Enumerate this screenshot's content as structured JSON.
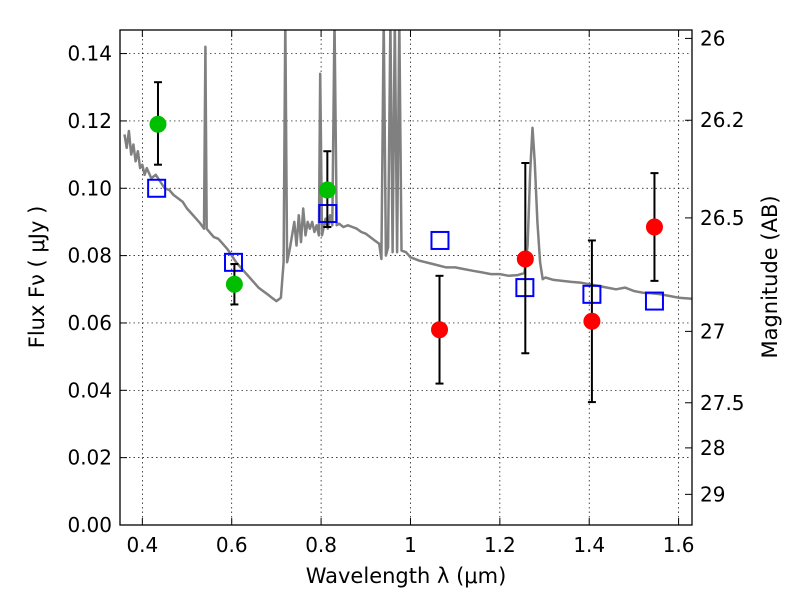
{
  "chart_data": {
    "type": "scatter",
    "title": "",
    "xlabel": "Wavelength  λ (μm)",
    "ylabel": "Flux  Fν  ( μJy )",
    "y2label": "Magnitude (AB)",
    "xlim": [
      0.35,
      1.63
    ],
    "ylim": [
      0.0,
      0.147
    ],
    "grid": true,
    "x_ticks": [
      0.4,
      0.6,
      0.8,
      1.0,
      1.2,
      1.4,
      1.6
    ],
    "x_tick_labels": [
      "0.4",
      "0.6",
      "0.8",
      "1",
      "1.2",
      "1.4",
      "1.6"
    ],
    "y_ticks": [
      0.0,
      0.02,
      0.04,
      0.06,
      0.08,
      0.1,
      0.12,
      0.14
    ],
    "y_tick_labels": [
      "0.00",
      "0.02",
      "0.04",
      "0.06",
      "0.08",
      "0.10",
      "0.12",
      "0.14"
    ],
    "y2_ticks": [
      {
        "label": "26",
        "flux": 0.1445
      },
      {
        "label": "26.2",
        "flux": 0.1202
      },
      {
        "label": "26.5",
        "flux": 0.0912
      },
      {
        "label": "27",
        "flux": 0.0575
      },
      {
        "label": "27.5",
        "flux": 0.0363
      },
      {
        "label": "28",
        "flux": 0.0229
      },
      {
        "label": "29",
        "flux": 0.0091
      }
    ],
    "series": [
      {
        "marker": "circle",
        "color": "#00bf00",
        "points": [
          {
            "x": 0.435,
            "y": 0.119,
            "err_lo": 0.012,
            "err_hi": 0.0125
          },
          {
            "x": 0.606,
            "y": 0.0715,
            "err_lo": 0.006,
            "err_hi": 0.006
          },
          {
            "x": 0.814,
            "y": 0.0995,
            "err_lo": 0.011,
            "err_hi": 0.0115
          }
        ]
      },
      {
        "marker": "circle",
        "color": "#ff0000",
        "points": [
          {
            "x": 1.065,
            "y": 0.058,
            "err_lo": 0.016,
            "err_hi": 0.016
          },
          {
            "x": 1.257,
            "y": 0.079,
            "err_lo": 0.028,
            "err_hi": 0.0285
          },
          {
            "x": 1.406,
            "y": 0.0605,
            "err_lo": 0.024,
            "err_hi": 0.024
          },
          {
            "x": 1.546,
            "y": 0.0885,
            "err_lo": 0.016,
            "err_hi": 0.016
          }
        ]
      },
      {
        "marker": "open-square",
        "color": "#0000ff",
        "points": [
          {
            "x": 0.432,
            "y": 0.1
          },
          {
            "x": 0.604,
            "y": 0.078
          },
          {
            "x": 0.815,
            "y": 0.0925
          },
          {
            "x": 1.066,
            "y": 0.0845
          },
          {
            "x": 1.256,
            "y": 0.0705
          },
          {
            "x": 1.406,
            "y": 0.0685
          },
          {
            "x": 1.546,
            "y": 0.0665
          }
        ]
      },
      {
        "marker": "line",
        "color": "#808080",
        "points": [
          [
            0.36,
            0.116
          ],
          [
            0.365,
            0.112
          ],
          [
            0.37,
            0.117
          ],
          [
            0.375,
            0.11
          ],
          [
            0.38,
            0.113
          ],
          [
            0.385,
            0.108
          ],
          [
            0.39,
            0.111
          ],
          [
            0.395,
            0.106
          ],
          [
            0.4,
            0.107
          ],
          [
            0.405,
            0.104
          ],
          [
            0.41,
            0.106
          ],
          [
            0.42,
            0.103
          ],
          [
            0.43,
            0.104
          ],
          [
            0.44,
            0.102
          ],
          [
            0.45,
            0.1
          ],
          [
            0.46,
            0.0995
          ],
          [
            0.47,
            0.098
          ],
          [
            0.48,
            0.097
          ],
          [
            0.49,
            0.096
          ],
          [
            0.5,
            0.094
          ],
          [
            0.51,
            0.0925
          ],
          [
            0.52,
            0.091
          ],
          [
            0.53,
            0.0895
          ],
          [
            0.538,
            0.088
          ],
          [
            0.541,
            0.142
          ],
          [
            0.544,
            0.088
          ],
          [
            0.55,
            0.087
          ],
          [
            0.56,
            0.0855
          ],
          [
            0.57,
            0.085
          ],
          [
            0.58,
            0.0835
          ],
          [
            0.59,
            0.082
          ],
          [
            0.6,
            0.08
          ],
          [
            0.61,
            0.078
          ],
          [
            0.62,
            0.0765
          ],
          [
            0.63,
            0.075
          ],
          [
            0.64,
            0.0735
          ],
          [
            0.65,
            0.072
          ],
          [
            0.66,
            0.0705
          ],
          [
            0.67,
            0.0695
          ],
          [
            0.68,
            0.0685
          ],
          [
            0.69,
            0.0675
          ],
          [
            0.7,
            0.0665
          ],
          [
            0.71,
            0.0675
          ],
          [
            0.716,
            0.078
          ],
          [
            0.72,
            0.15
          ],
          [
            0.724,
            0.078
          ],
          [
            0.73,
            0.082
          ],
          [
            0.74,
            0.09
          ],
          [
            0.745,
            0.083
          ],
          [
            0.75,
            0.092
          ],
          [
            0.755,
            0.084
          ],
          [
            0.76,
            0.094
          ],
          [
            0.765,
            0.086
          ],
          [
            0.77,
            0.09
          ],
          [
            0.775,
            0.088
          ],
          [
            0.78,
            0.09
          ],
          [
            0.785,
            0.087
          ],
          [
            0.79,
            0.089
          ],
          [
            0.795,
            0.086
          ],
          [
            0.798,
            0.134
          ],
          [
            0.802,
            0.086
          ],
          [
            0.81,
            0.091
          ],
          [
            0.815,
            0.088
          ],
          [
            0.82,
            0.092
          ],
          [
            0.825,
            0.089
          ],
          [
            0.83,
            0.15
          ],
          [
            0.835,
            0.089
          ],
          [
            0.84,
            0.0895
          ],
          [
            0.85,
            0.0885
          ],
          [
            0.86,
            0.089
          ],
          [
            0.87,
            0.0885
          ],
          [
            0.88,
            0.088
          ],
          [
            0.89,
            0.087
          ],
          [
            0.9,
            0.0865
          ],
          [
            0.91,
            0.0855
          ],
          [
            0.92,
            0.0845
          ],
          [
            0.93,
            0.0835
          ],
          [
            0.935,
            0.079
          ],
          [
            0.94,
            0.15
          ],
          [
            0.945,
            0.08
          ],
          [
            0.95,
            0.0825
          ],
          [
            0.955,
            0.15
          ],
          [
            0.96,
            0.081
          ],
          [
            0.965,
            0.15
          ],
          [
            0.97,
            0.081
          ],
          [
            0.975,
            0.15
          ],
          [
            0.98,
            0.0815
          ],
          [
            0.99,
            0.081
          ],
          [
            1.0,
            0.0795
          ],
          [
            1.02,
            0.0785
          ],
          [
            1.05,
            0.0775
          ],
          [
            1.08,
            0.0765
          ],
          [
            1.1,
            0.0765
          ],
          [
            1.12,
            0.076
          ],
          [
            1.14,
            0.0755
          ],
          [
            1.16,
            0.075
          ],
          [
            1.18,
            0.0745
          ],
          [
            1.2,
            0.0745
          ],
          [
            1.22,
            0.074
          ],
          [
            1.24,
            0.0742
          ],
          [
            1.255,
            0.0748
          ],
          [
            1.262,
            0.083
          ],
          [
            1.268,
            0.105
          ],
          [
            1.273,
            0.118
          ],
          [
            1.278,
            0.108
          ],
          [
            1.284,
            0.09
          ],
          [
            1.29,
            0.078
          ],
          [
            1.296,
            0.073
          ],
          [
            1.302,
            0.0735
          ],
          [
            1.32,
            0.0728
          ],
          [
            1.34,
            0.0725
          ],
          [
            1.36,
            0.0722
          ],
          [
            1.38,
            0.072
          ],
          [
            1.4,
            0.0715
          ],
          [
            1.42,
            0.071
          ],
          [
            1.44,
            0.0705
          ],
          [
            1.46,
            0.07
          ],
          [
            1.48,
            0.0705
          ],
          [
            1.5,
            0.0695
          ],
          [
            1.52,
            0.069
          ],
          [
            1.54,
            0.0688
          ],
          [
            1.56,
            0.0685
          ],
          [
            1.58,
            0.068
          ],
          [
            1.6,
            0.0675
          ],
          [
            1.63,
            0.0672
          ]
        ]
      }
    ]
  }
}
